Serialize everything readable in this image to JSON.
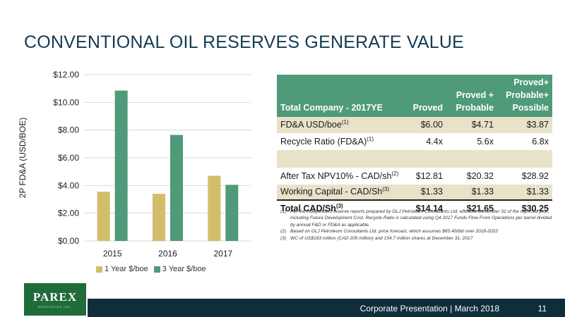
{
  "slide": {
    "title": "CONVENTIONAL OIL RESERVES GENERATE VALUE"
  },
  "chart_data": {
    "type": "bar",
    "categories": [
      "2015",
      "2016",
      "2017"
    ],
    "series": [
      {
        "name": "1 Year $/boe",
        "values": [
          3.55,
          3.4,
          4.7
        ],
        "color": "#d4bd6a"
      },
      {
        "name": "3 Year $/boe",
        "values": [
          10.85,
          7.65,
          4.05
        ],
        "color": "#4f9a78"
      }
    ],
    "ylabel": "2P FD&A (USD/BOE)",
    "yticks": [
      "$0.00",
      "$2.00",
      "$4.00",
      "$6.00",
      "$8.00",
      "$10.00",
      "$12.00"
    ],
    "ylim": [
      0,
      12
    ],
    "grid": true,
    "legend": "bottom"
  },
  "table": {
    "headers": {
      "label": "Total Company - 2017YE",
      "col1": "Proved",
      "col2_line1": "Proved +",
      "col2_line2": "Probable",
      "col3_line1": "Proved+",
      "col3_line2": "Probable+",
      "col3_line3": "Possible"
    },
    "rows": [
      {
        "label": "FD&A USD/boe",
        "sup": "(1)",
        "v1": "$6.00",
        "v2": "$4.71",
        "v3": "$3.87"
      },
      {
        "label": "Recycle Ratio (FD&A)",
        "sup": "(1)",
        "v1": "4.4x",
        "v2": "5.6x",
        "v3": "6.8x"
      },
      {
        "label": "After Tax NPV10% - CAD/sh",
        "sup": "(2)",
        "v1": "$12.81",
        "v2": "$20.32",
        "v3": "$28.92"
      },
      {
        "label": "Working Capital  - CAD/Sh",
        "sup": "(3)",
        "v1": "$1.33",
        "v2": "$1.33",
        "v3": "$1.33"
      }
    ],
    "total": {
      "label": "Total CAD/Sh",
      "sup": "(3)",
      "v1": "$14.14",
      "v2": "$21.65",
      "v3": "$30.25"
    }
  },
  "footnotes": [
    {
      "num": "(1)",
      "text": "Per the independent reserve reports prepared by GLJ Petroleum Consultants Ltd. effective December 31 of the reported year, including Future Development Cost. Recycle Ratio is calculated using Q4 2017 Funds Flow From Operations per barrel divided  by annual F&D or FD&A as applicable."
    },
    {
      "num": "(2)",
      "text": "Based on GLJ Petroleum Consultants Ltd. price forecast, which assumes $65.40/bbl over 2018-2022"
    },
    {
      "num": "(3)",
      "text": "WC of  US$163 million (CAD 205 million) and 154.7 million shares at December 31, 2017"
    }
  ],
  "logo": {
    "name": "PAREX",
    "sub": "RESOURCES INC."
  },
  "footer": {
    "text": "Corporate Presentation  |  March 2018",
    "page": "11"
  }
}
